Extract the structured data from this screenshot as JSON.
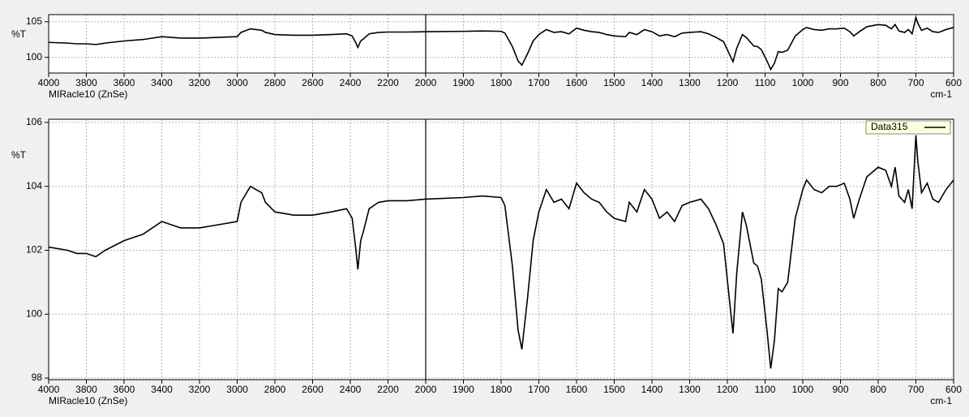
{
  "chart_data": [
    {
      "type": "line",
      "ylabel": "%T",
      "xlabel": "MIRacle10 (ZnSe)",
      "xunit_label": "cm-1",
      "xlim": [
        4000,
        600
      ],
      "xticks": [
        4000,
        3800,
        3600,
        3400,
        3200,
        3000,
        2800,
        2600,
        2400,
        2200,
        2000,
        1900,
        1800,
        1700,
        1600,
        1500,
        1400,
        1300,
        1200,
        1100,
        1000,
        900,
        800,
        700,
        600
      ],
      "ylim": [
        97.8,
        106.0
      ],
      "yticks": [
        100,
        105
      ],
      "grid": true,
      "cursor_x": 2000,
      "x": [
        4000,
        3900,
        3850,
        3800,
        3750,
        3700,
        3600,
        3500,
        3450,
        3400,
        3350,
        3300,
        3200,
        3100,
        3000,
        2980,
        2930,
        2900,
        2870,
        2850,
        2800,
        2700,
        2600,
        2500,
        2420,
        2390,
        2370,
        2360,
        2345,
        2330,
        2300,
        2250,
        2200,
        2100,
        2000,
        1900,
        1850,
        1800,
        1790,
        1770,
        1755,
        1745,
        1730,
        1715,
        1700,
        1680,
        1660,
        1640,
        1620,
        1600,
        1580,
        1560,
        1540,
        1520,
        1500,
        1470,
        1460,
        1440,
        1420,
        1400,
        1380,
        1360,
        1340,
        1320,
        1300,
        1270,
        1250,
        1230,
        1210,
        1195,
        1185,
        1175,
        1160,
        1150,
        1130,
        1120,
        1110,
        1095,
        1085,
        1075,
        1065,
        1055,
        1040,
        1030,
        1020,
        1000,
        990,
        970,
        950,
        930,
        910,
        890,
        875,
        865,
        850,
        830,
        800,
        780,
        765,
        755,
        745,
        730,
        720,
        710,
        700,
        695,
        685,
        670,
        655,
        640,
        620,
        600
      ],
      "series": [
        {
          "color": "#000000",
          "values": [
            102.1,
            102.0,
            101.9,
            101.9,
            101.8,
            102.0,
            102.3,
            102.5,
            102.7,
            102.9,
            102.8,
            102.7,
            102.7,
            102.8,
            102.9,
            103.5,
            104.0,
            103.9,
            103.8,
            103.5,
            103.2,
            103.1,
            103.1,
            103.2,
            103.3,
            103.0,
            102.0,
            101.4,
            102.3,
            102.6,
            103.3,
            103.5,
            103.55,
            103.55,
            103.6,
            103.65,
            103.7,
            103.65,
            103.4,
            101.5,
            99.5,
            98.9,
            100.5,
            102.3,
            103.2,
            103.9,
            103.5,
            103.6,
            103.3,
            104.1,
            103.8,
            103.6,
            103.5,
            103.2,
            103.0,
            102.9,
            103.5,
            103.2,
            103.9,
            103.6,
            103.0,
            103.2,
            102.9,
            103.4,
            103.5,
            103.6,
            103.3,
            102.8,
            102.2,
            100.5,
            99.4,
            101.3,
            103.2,
            102.8,
            101.6,
            101.5,
            101.1,
            99.5,
            98.3,
            99.2,
            100.8,
            100.7,
            101.0,
            102.0,
            103.0,
            103.9,
            104.2,
            103.9,
            103.8,
            104.0,
            104.0,
            104.1,
            103.6,
            103.0,
            103.6,
            104.3,
            104.6,
            104.5,
            104.0,
            104.6,
            103.7,
            103.5,
            103.9,
            103.3,
            105.6,
            104.8,
            103.8,
            104.1,
            103.6,
            103.5,
            103.9,
            104.2
          ]
        }
      ]
    },
    {
      "type": "line",
      "ylabel": "%T",
      "xlabel": "MIRacle10 (ZnSe)",
      "xunit_label": "cm-1",
      "xlim": [
        4000,
        600
      ],
      "xticks": [
        4000,
        3800,
        3600,
        3400,
        3200,
        3000,
        2800,
        2600,
        2400,
        2200,
        2000,
        1900,
        1800,
        1700,
        1600,
        1500,
        1400,
        1300,
        1200,
        1100,
        1000,
        900,
        800,
        700,
        600
      ],
      "ylim": [
        97.95,
        106.1
      ],
      "yticks": [
        98,
        100,
        102,
        104,
        106
      ],
      "grid": true,
      "cursor_x": 2000,
      "legend": "upper right",
      "x": [
        4000,
        3900,
        3850,
        3800,
        3750,
        3700,
        3600,
        3500,
        3450,
        3400,
        3350,
        3300,
        3200,
        3100,
        3000,
        2980,
        2930,
        2900,
        2870,
        2850,
        2800,
        2700,
        2600,
        2500,
        2420,
        2390,
        2370,
        2360,
        2345,
        2330,
        2300,
        2250,
        2200,
        2100,
        2000,
        1900,
        1850,
        1800,
        1790,
        1770,
        1755,
        1745,
        1730,
        1715,
        1700,
        1680,
        1660,
        1640,
        1620,
        1600,
        1580,
        1560,
        1540,
        1520,
        1500,
        1470,
        1460,
        1440,
        1420,
        1400,
        1380,
        1360,
        1340,
        1320,
        1300,
        1270,
        1250,
        1230,
        1210,
        1195,
        1185,
        1175,
        1160,
        1150,
        1130,
        1120,
        1110,
        1095,
        1085,
        1075,
        1065,
        1055,
        1040,
        1030,
        1020,
        1000,
        990,
        970,
        950,
        930,
        910,
        890,
        875,
        865,
        850,
        830,
        800,
        780,
        765,
        755,
        745,
        730,
        720,
        710,
        700,
        695,
        685,
        670,
        655,
        640,
        620,
        600
      ],
      "series": [
        {
          "name": "Data315",
          "color": "#000000",
          "values": [
            102.1,
            102.0,
            101.9,
            101.9,
            101.8,
            102.0,
            102.3,
            102.5,
            102.7,
            102.9,
            102.8,
            102.7,
            102.7,
            102.8,
            102.9,
            103.5,
            104.0,
            103.9,
            103.8,
            103.5,
            103.2,
            103.1,
            103.1,
            103.2,
            103.3,
            103.0,
            102.0,
            101.4,
            102.3,
            102.6,
            103.3,
            103.5,
            103.55,
            103.55,
            103.6,
            103.65,
            103.7,
            103.65,
            103.4,
            101.5,
            99.5,
            98.9,
            100.5,
            102.3,
            103.2,
            103.9,
            103.5,
            103.6,
            103.3,
            104.1,
            103.8,
            103.6,
            103.5,
            103.2,
            103.0,
            102.9,
            103.5,
            103.2,
            103.9,
            103.6,
            103.0,
            103.2,
            102.9,
            103.4,
            103.5,
            103.6,
            103.3,
            102.8,
            102.2,
            100.5,
            99.4,
            101.3,
            103.2,
            102.8,
            101.6,
            101.5,
            101.1,
            99.5,
            98.3,
            99.2,
            100.8,
            100.7,
            101.0,
            102.0,
            103.0,
            103.9,
            104.2,
            103.9,
            103.8,
            104.0,
            104.0,
            104.1,
            103.6,
            103.0,
            103.6,
            104.3,
            104.6,
            104.5,
            104.0,
            104.6,
            103.7,
            103.5,
            103.9,
            103.3,
            105.6,
            104.8,
            103.8,
            104.1,
            103.6,
            103.5,
            103.9,
            104.2
          ]
        }
      ]
    }
  ]
}
